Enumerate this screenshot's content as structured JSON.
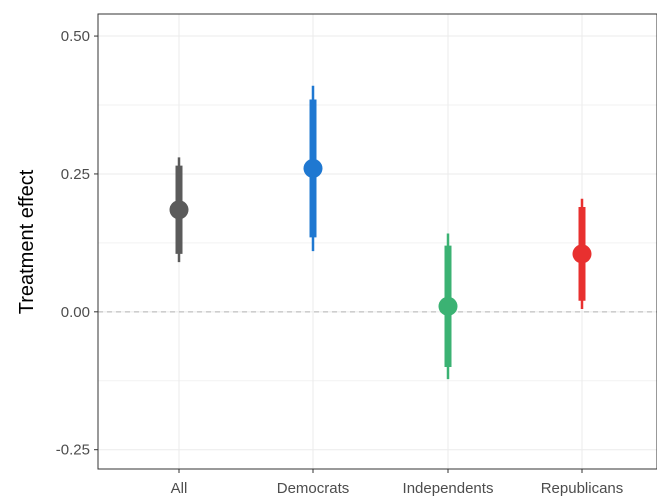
{
  "chart_data": {
    "type": "scatter",
    "title": "",
    "xlabel": "",
    "ylabel": "Treatment effect",
    "ylim": [
      -0.285,
      0.54
    ],
    "yticks": [
      -0.25,
      0.0,
      0.25,
      0.5
    ],
    "ytick_labels": [
      "-0.25",
      "0.00",
      "0.25",
      "0.50"
    ],
    "grid": true,
    "reference_line": {
      "y": 0.0,
      "style": "dashed",
      "color": "#b3b3b3"
    },
    "categories": [
      "All",
      "Democrats",
      "Independents",
      "Republicans"
    ],
    "points": [
      {
        "category": "All",
        "estimate": 0.185,
        "ci_inner": [
          0.105,
          0.265
        ],
        "ci_outer": [
          0.09,
          0.28
        ],
        "color": "#5b5b5b"
      },
      {
        "category": "Democrats",
        "estimate": 0.26,
        "ci_inner": [
          0.135,
          0.385
        ],
        "ci_outer": [
          0.11,
          0.41
        ],
        "color": "#1f78d1"
      },
      {
        "category": "Independents",
        "estimate": 0.01,
        "ci_inner": [
          -0.1,
          0.12
        ],
        "ci_outer": [
          -0.122,
          0.142
        ],
        "color": "#3bb273"
      },
      {
        "category": "Republicans",
        "estimate": 0.105,
        "ci_inner": [
          0.02,
          0.19
        ],
        "ci_outer": [
          0.005,
          0.205
        ],
        "color": "#e8302f"
      }
    ],
    "legend": "none"
  }
}
